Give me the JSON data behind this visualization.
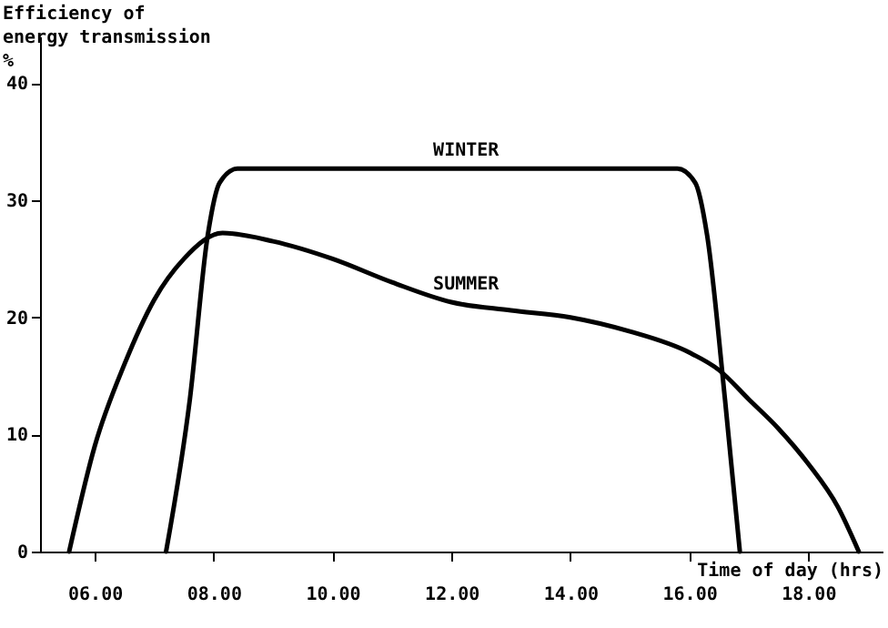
{
  "chart_data": {
    "type": "line",
    "xlabel": "Time of day (hrs)",
    "ylabel": "Efficiency of\nenergy transmission\n%",
    "xlim": [
      5.08,
      19.25
    ],
    "ylim": [
      0,
      44
    ],
    "xticks": [
      {
        "value": 6,
        "label": "06.00"
      },
      {
        "value": 8,
        "label": "08.00"
      },
      {
        "value": 10,
        "label": "10.00"
      },
      {
        "value": 12,
        "label": "12.00"
      },
      {
        "value": 14,
        "label": "14.00"
      },
      {
        "value": 16,
        "label": "16.00"
      },
      {
        "value": 18,
        "label": "18.00"
      }
    ],
    "yticks": [
      0,
      10,
      20,
      30,
      40
    ],
    "series": [
      {
        "name": "WINTER",
        "color": "#000000",
        "x": [
          7.2,
          7.6,
          7.9,
          8.1,
          8.4,
          12.0,
          15.8,
          16.1,
          16.3,
          16.6,
          16.85
        ],
        "values": [
          0,
          13,
          27,
          31.5,
          32.7,
          32.7,
          32.7,
          31.5,
          27,
          13,
          0
        ]
      },
      {
        "name": "SUMMER",
        "color": "#000000",
        "x": [
          5.57,
          6.0,
          6.5,
          7.0,
          7.5,
          8.15,
          9,
          10,
          11,
          12,
          13,
          14,
          15,
          16,
          16.5,
          17,
          17.5,
          18,
          18.5,
          18.85
        ],
        "values": [
          0,
          9,
          16,
          21.5,
          25,
          27.2,
          26.5,
          25,
          23,
          21.3,
          20.6,
          20,
          18.8,
          17,
          15.5,
          13,
          10.5,
          7.5,
          3.8,
          0
        ]
      }
    ],
    "grid": false,
    "legend": false,
    "marker": "none",
    "line_style": "solid"
  }
}
